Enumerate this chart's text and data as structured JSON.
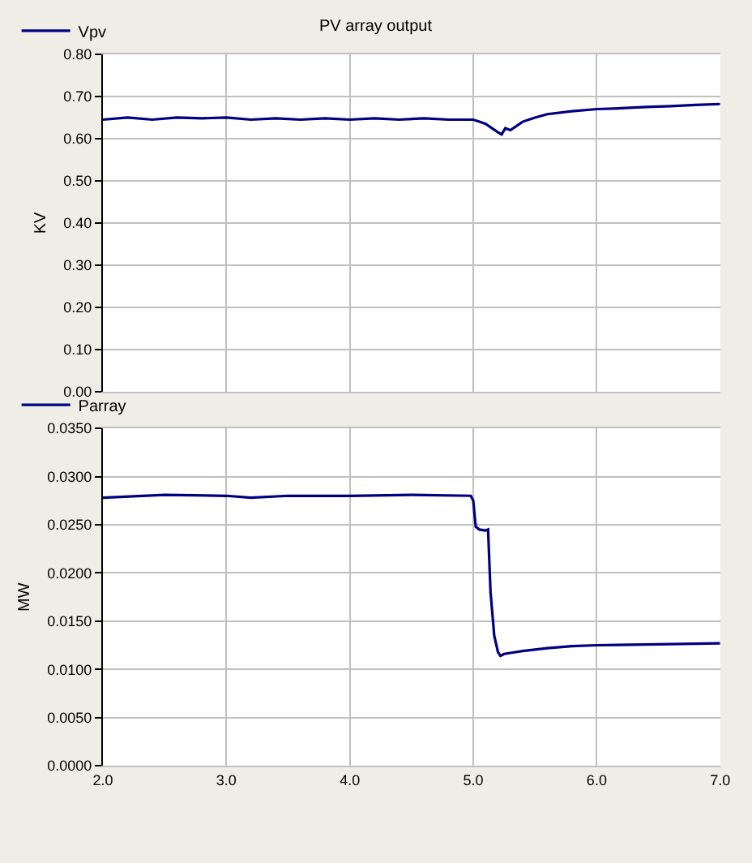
{
  "chart_data": [
    {
      "type": "line",
      "title": "PV array output",
      "ylabel": "KV",
      "legend": "top left",
      "grid": true,
      "tick_labels": "y",
      "x": [
        2.0,
        2.2,
        2.4,
        2.6,
        2.8,
        3.0,
        3.2,
        3.4,
        3.6,
        3.8,
        4.0,
        4.2,
        4.4,
        4.6,
        4.8,
        5.0,
        5.05,
        5.1,
        5.15,
        5.2,
        5.23,
        5.26,
        5.3,
        5.35,
        5.4,
        5.5,
        5.6,
        5.8,
        6.0,
        6.2,
        6.4,
        6.6,
        6.8,
        7.0
      ],
      "series": [
        {
          "name": "Vpv",
          "color": "#000080",
          "values": [
            0.645,
            0.65,
            0.645,
            0.65,
            0.648,
            0.65,
            0.645,
            0.648,
            0.645,
            0.648,
            0.645,
            0.648,
            0.645,
            0.648,
            0.645,
            0.645,
            0.64,
            0.635,
            0.625,
            0.615,
            0.61,
            0.625,
            0.62,
            0.63,
            0.64,
            0.65,
            0.658,
            0.665,
            0.67,
            0.672,
            0.675,
            0.677,
            0.68,
            0.682
          ]
        }
      ],
      "xlim": [
        2.0,
        7.0
      ],
      "xticks": [
        {
          "value": 2,
          "label": null
        },
        {
          "value": 3,
          "label": null
        },
        {
          "value": 4,
          "label": null
        },
        {
          "value": 5,
          "label": null
        },
        {
          "value": 6,
          "label": null
        },
        {
          "value": 7,
          "label": null
        }
      ],
      "ylim": [
        0,
        0.8
      ],
      "yticks": [
        {
          "value": 0,
          "label": "0.00"
        },
        {
          "value": 0.1,
          "label": "0.10"
        },
        {
          "value": 0.2,
          "label": "0.20"
        },
        {
          "value": 0.3,
          "label": "0.30"
        },
        {
          "value": 0.4,
          "label": "0.40"
        },
        {
          "value": 0.5,
          "label": "0.50"
        },
        {
          "value": 0.6,
          "label": "0.60"
        },
        {
          "value": 0.7,
          "label": "0.70"
        },
        {
          "value": 0.8,
          "label": "0.80"
        }
      ]
    },
    {
      "type": "line",
      "ylabel": "MW",
      "legend": "top left",
      "grid": true,
      "x": [
        2.0,
        2.5,
        3.0,
        3.2,
        3.5,
        4.0,
        4.5,
        4.98,
        5.0,
        5.02,
        5.05,
        5.1,
        5.12,
        5.14,
        5.17,
        5.2,
        5.22,
        5.25,
        5.3,
        5.4,
        5.6,
        5.8,
        6.0,
        6.5,
        7.0
      ],
      "series": [
        {
          "name": "Parray",
          "color": "#000080",
          "values": [
            0.0278,
            0.0281,
            0.028,
            0.0278,
            0.028,
            0.028,
            0.0281,
            0.028,
            0.0275,
            0.0248,
            0.0245,
            0.0244,
            0.0245,
            0.018,
            0.0135,
            0.0118,
            0.0114,
            0.0116,
            0.0117,
            0.0119,
            0.0122,
            0.0124,
            0.0125,
            0.0126,
            0.0127
          ]
        }
      ],
      "xlim": [
        2.0,
        7.0
      ],
      "xticks": [
        {
          "value": 2,
          "label": "2.0"
        },
        {
          "value": 3,
          "label": "3.0"
        },
        {
          "value": 4,
          "label": "4.0"
        },
        {
          "value": 5,
          "label": "5.0"
        },
        {
          "value": 6,
          "label": "6.0"
        },
        {
          "value": 7,
          "label": "7.0"
        }
      ],
      "ylim": [
        0,
        0.035
      ],
      "yticks": [
        {
          "value": 0,
          "label": "0.0000"
        },
        {
          "value": 0.005,
          "label": "0.0050"
        },
        {
          "value": 0.01,
          "label": "0.0100"
        },
        {
          "value": 0.015,
          "label": "0.0150"
        },
        {
          "value": 0.02,
          "label": "0.0200"
        },
        {
          "value": 0.025,
          "label": "0.0250"
        },
        {
          "value": 0.03,
          "label": "0.0300"
        },
        {
          "value": 0.035,
          "label": "0.0350"
        }
      ]
    }
  ]
}
